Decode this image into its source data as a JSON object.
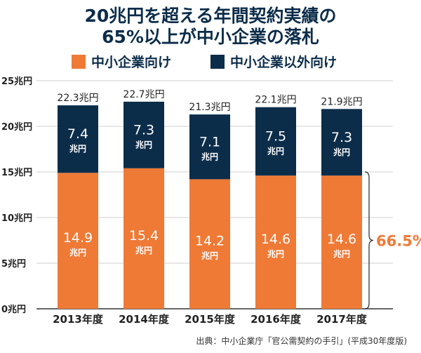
{
  "title_line1": "20兆円を超える年間契約実績の",
  "title_line2": "65%以上が中小企業の落札",
  "colors": {
    "sme": "#ef7a36",
    "other": "#0c2d4a",
    "title": "#0c2d4a",
    "annotation": "#ef7a36"
  },
  "chart_data": {
    "type": "bar",
    "stacked": true,
    "categories": [
      "2013年度",
      "2014年度",
      "2015年度",
      "2016年度",
      "2017年度"
    ],
    "series": [
      {
        "name": "中小企業向け",
        "values": [
          14.9,
          15.4,
          14.2,
          14.6,
          14.6
        ]
      },
      {
        "name": "中小企業以外向け",
        "values": [
          7.4,
          7.3,
          7.1,
          7.5,
          7.3
        ]
      }
    ],
    "totals": [
      "22.3兆円",
      "22.7兆円",
      "21.3兆円",
      "22.1兆円",
      "21.9兆円"
    ],
    "segment_labels": {
      "sme": [
        "14.9",
        "15.4",
        "14.2",
        "14.6",
        "14.6"
      ],
      "other": [
        "7.4",
        "7.3",
        "7.1",
        "7.5",
        "7.3"
      ]
    },
    "segment_unit": "兆円",
    "y_ticks": [
      "0兆円",
      "5兆円",
      "10兆円",
      "15兆円",
      "20兆円",
      "25兆円"
    ],
    "ylim": [
      0,
      25
    ],
    "grid": true,
    "legend_position": "top",
    "annotation": "66.5%"
  },
  "source": "出典：中小企業庁「官公需契約の手引」(平成30年度版)"
}
